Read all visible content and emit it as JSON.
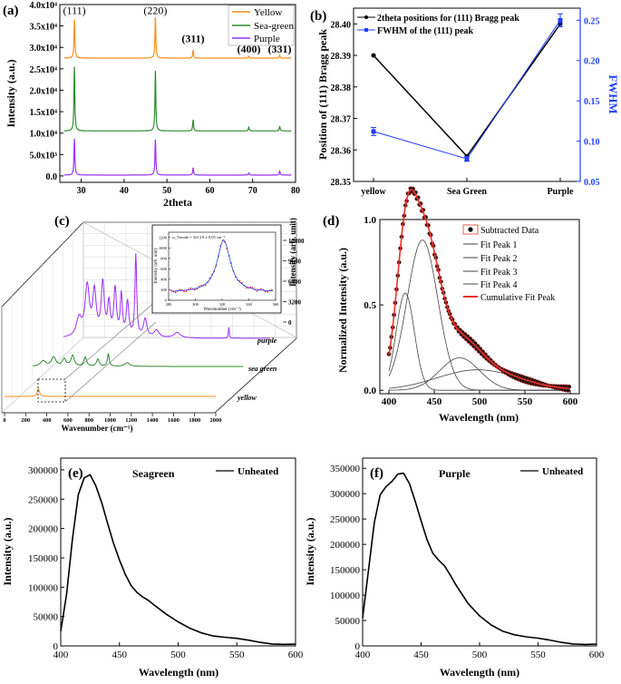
{
  "panel_labels": {
    "a": "(a)",
    "b": "(b)",
    "c": "(c)",
    "d": "(d)",
    "e": "(e)",
    "f": "(f)"
  },
  "colors": {
    "yellow": "#ff8c1a",
    "seagreen": "#2e8b2e",
    "purple": "#9b30ff",
    "black": "#000000",
    "blue": "#1f3fff",
    "red": "#e8312a",
    "fit": "#444444"
  },
  "chart_data": [
    {
      "id": "a",
      "type": "line",
      "title": "",
      "xlabel": "2theta",
      "ylabel": "Intensity (a.u.)",
      "xlim": [
        25,
        80
      ],
      "ylim": [
        -1500,
        40000
      ],
      "xticks": [
        30,
        40,
        50,
        60,
        70,
        80
      ],
      "yticks": [
        {
          "v": 0,
          "label": "0.0"
        },
        {
          "v": 5000,
          "label": "5.0x10³"
        },
        {
          "v": 10000,
          "label": "1.0x10⁴"
        },
        {
          "v": 15000,
          "label": "1.5x10⁴"
        },
        {
          "v": 20000,
          "label": "2.0x10⁴"
        },
        {
          "v": 25000,
          "label": "2.5x10⁴"
        },
        {
          "v": 30000,
          "label": "3.0x10⁴"
        },
        {
          "v": 35000,
          "label": "3.5x10⁴"
        },
        {
          "v": 40000,
          "label": "4.0x10⁴"
        }
      ],
      "series": [
        {
          "name": "Yellow",
          "color": "#ff8c1a",
          "base": 27500,
          "peaks": [
            [
              28.4,
              9000
            ],
            [
              47.3,
              9500
            ],
            [
              56.1,
              1900
            ],
            [
              69.1,
              450
            ],
            [
              76.3,
              650
            ]
          ]
        },
        {
          "name": "Sea-green",
          "color": "#2e8b2e",
          "base": 10500,
          "peaks": [
            [
              28.4,
              15000
            ],
            [
              47.3,
              14000
            ],
            [
              56.1,
              2600
            ],
            [
              69.1,
              900
            ],
            [
              76.3,
              1100
            ]
          ]
        },
        {
          "name": "Purple",
          "color": "#9b30ff",
          "base": 200,
          "peaks": [
            [
              28.4,
              8500
            ],
            [
              47.3,
              8300
            ],
            [
              56.1,
              1700
            ],
            [
              69.1,
              500
            ],
            [
              76.3,
              900
            ]
          ]
        }
      ],
      "annotations": [
        {
          "text": "(111)",
          "x": 28.4,
          "y": 37800
        },
        {
          "text": "(220)",
          "x": 47.3,
          "y": 37800
        },
        {
          "text": "(311)",
          "x": 56.1,
          "y": 31200
        },
        {
          "text": "(400)",
          "x": 69.1,
          "y": 28800
        },
        {
          "text": "(331)",
          "x": 76.3,
          "y": 28800
        }
      ],
      "legend": [
        "Yellow",
        "Sea-green",
        "Purple"
      ],
      "legend_position": "top-right"
    },
    {
      "id": "b",
      "type": "line",
      "title": "",
      "xlabel": "",
      "ylabel": "Position of (111) Bragg peak",
      "y2label": "FWHM",
      "categories": [
        "yellow",
        "Sea Green",
        "Purple"
      ],
      "ylim": [
        28.35,
        28.405
      ],
      "y2lim": [
        0.05,
        0.265
      ],
      "yticks": [
        28.35,
        28.36,
        28.37,
        28.38,
        28.39,
        28.4
      ],
      "y2ticks": [
        0.05,
        0.1,
        0.15,
        0.2,
        0.25
      ],
      "series": [
        {
          "name": "2theta positions for (111) Bragg peak",
          "axis": "left",
          "color": "#000000",
          "values": [
            28.39,
            28.358,
            28.4
          ]
        },
        {
          "name": "FWHM of the (111) peak",
          "axis": "right",
          "color": "#1f3fff",
          "values": [
            0.112,
            0.078,
            0.25
          ],
          "errors": [
            0.005,
            0.003,
            0.008
          ]
        }
      ],
      "legend_position": "top-left"
    },
    {
      "id": "c",
      "type": "line",
      "title": "",
      "xlabel": "Wavenumber (cm⁻¹)",
      "zlabel": "Intensity (arb. unit)",
      "xticks": [
        0,
        200,
        400,
        600,
        800,
        1000,
        1200,
        1400,
        1600,
        1800,
        2000
      ],
      "zticks": [
        0,
        3200,
        6400,
        9600,
        12800
      ],
      "series_labels": [
        "purple",
        "sea green",
        "yellow"
      ],
      "inset": {
        "title": "ω_Tmode = 321.19 ± 0.05 cm⁻¹",
        "xlabel": "Wavenumber (cm⁻¹)",
        "ylabel": "Intensity (arb. unit)",
        "xlim": [
          280,
          360
        ],
        "ylim": [
          0,
          1300
        ],
        "xticks": [
          280,
          300,
          320,
          340,
          360
        ],
        "yticks": [
          0,
          200,
          400,
          600,
          800,
          1000,
          1200
        ],
        "peak_center": 321.19,
        "peak_height": 1150,
        "baseline": 150
      }
    },
    {
      "id": "d",
      "type": "line",
      "title": "",
      "xlabel": "Wavelength (nm)",
      "ylabel": "Normalized Intensity (a.u.)",
      "xlim": [
        390,
        610
      ],
      "ylim": [
        -0.02,
        1.0
      ],
      "xticks": [
        400,
        450,
        500,
        550,
        600
      ],
      "yticks": [
        {
          "v": 0,
          "label": "0.0"
        },
        {
          "v": 0.5,
          "label": "0.5"
        },
        {
          "v": 1.0,
          "label": "1.0"
        }
      ],
      "series": [
        {
          "name": "Fit Peak 1",
          "center": 418,
          "height": 0.57,
          "width": 10
        },
        {
          "name": "Fit Peak 2",
          "center": 437,
          "height": 0.88,
          "width": 17
        },
        {
          "name": "Fit Peak 3",
          "center": 478,
          "height": 0.19,
          "width": 22
        },
        {
          "name": "Fit Peak 4",
          "center": 498,
          "height": 0.12,
          "width": 45
        }
      ],
      "legend": [
        "Subtracted Data",
        "Fit Peak 1",
        "Fit Peak 2",
        "Fit Peak 3",
        "Fit Peak 4",
        "Cumulative Fit Peak"
      ],
      "legend_position": "top-right"
    },
    {
      "id": "e",
      "type": "line",
      "title": "Seagreen",
      "xlabel": "Wavelength (nm)",
      "ylabel": "Intensity (a.u.)",
      "xlim": [
        400,
        600
      ],
      "ylim": [
        0,
        320000
      ],
      "xticks": [
        400,
        450,
        500,
        550,
        600
      ],
      "yticks": [
        {
          "v": 0,
          "label": "0"
        },
        {
          "v": 50000,
          "label": "50000"
        },
        {
          "v": 100000,
          "label": "100000"
        },
        {
          "v": 150000,
          "label": "150000"
        },
        {
          "v": 200000,
          "label": "200000"
        },
        {
          "v": 250000,
          "label": "250000"
        },
        {
          "v": 300000,
          "label": "300000"
        }
      ],
      "series": [
        {
          "name": "Unheated",
          "points": [
            [
              400,
              25000
            ],
            [
              405,
              90000
            ],
            [
              410,
              185000
            ],
            [
              415,
              258000
            ],
            [
              420,
              285000
            ],
            [
              425,
              290000
            ],
            [
              430,
              272000
            ],
            [
              435,
              245000
            ],
            [
              440,
              210000
            ],
            [
              445,
              175000
            ],
            [
              450,
              145000
            ],
            [
              455,
              120000
            ],
            [
              460,
              102000
            ],
            [
              465,
              92000
            ],
            [
              470,
              85000
            ],
            [
              475,
              78000
            ],
            [
              480,
              68000
            ],
            [
              490,
              52000
            ],
            [
              500,
              40000
            ],
            [
              510,
              31000
            ],
            [
              520,
              24000
            ],
            [
              530,
              18000
            ],
            [
              540,
              14000
            ],
            [
              550,
              11000
            ],
            [
              560,
              8500
            ],
            [
              570,
              6500
            ],
            [
              580,
              5000
            ],
            [
              590,
              4000
            ],
            [
              600,
              3000
            ]
          ]
        }
      ],
      "legend": [
        "Unheated"
      ],
      "legend_position": "top-right"
    },
    {
      "id": "f",
      "type": "line",
      "title": "Purple",
      "xlabel": "Wavelength (nm)",
      "ylabel": "Intensity (a.u.)",
      "xlim": [
        400,
        600
      ],
      "ylim": [
        0,
        370000
      ],
      "xticks": [
        400,
        450,
        500,
        550,
        600
      ],
      "yticks": [
        {
          "v": 0,
          "label": "0"
        },
        {
          "v": 50000,
          "label": "50000"
        },
        {
          "v": 100000,
          "label": "100000"
        },
        {
          "v": 150000,
          "label": "150000"
        },
        {
          "v": 200000,
          "label": "200000"
        },
        {
          "v": 250000,
          "label": "250000"
        },
        {
          "v": 300000,
          "label": "300000"
        },
        {
          "v": 350000,
          "label": "350000"
        }
      ],
      "series": [
        {
          "name": "Unheated",
          "points": [
            [
              400,
              55000
            ],
            [
              405,
              150000
            ],
            [
              410,
              245000
            ],
            [
              415,
              298000
            ],
            [
              420,
              312000
            ],
            [
              425,
              322000
            ],
            [
              430,
              338000
            ],
            [
              435,
              342000
            ],
            [
              440,
              322000
            ],
            [
              445,
              285000
            ],
            [
              450,
              245000
            ],
            [
              455,
              208000
            ],
            [
              460,
              182000
            ],
            [
              465,
              170000
            ],
            [
              470,
              160000
            ],
            [
              475,
              140000
            ],
            [
              480,
              118000
            ],
            [
              490,
              82000
            ],
            [
              500,
              58000
            ],
            [
              510,
              42000
            ],
            [
              520,
              31000
            ],
            [
              530,
              23000
            ],
            [
              540,
              17000
            ],
            [
              550,
              13000
            ],
            [
              560,
              10000
            ],
            [
              570,
              7500
            ],
            [
              580,
              5800
            ],
            [
              590,
              4500
            ],
            [
              600,
              3500
            ]
          ]
        }
      ],
      "legend": [
        "Unheated"
      ],
      "legend_position": "top-right"
    }
  ]
}
